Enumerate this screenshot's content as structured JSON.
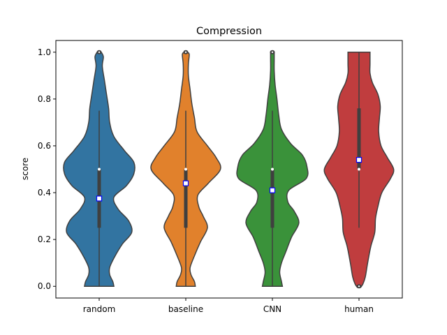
{
  "chart_data": {
    "type": "violin",
    "title": "Compression",
    "xlabel": "",
    "ylabel": "score",
    "ylim": [
      -0.05,
      1.05
    ],
    "yticks": [
      0.0,
      0.2,
      0.4,
      0.6,
      0.8,
      1.0
    ],
    "ytick_labels": [
      "0.0",
      "0.2",
      "0.4",
      "0.6",
      "0.8",
      "1.0"
    ],
    "categories": [
      "random",
      "baseline",
      "CNN",
      "human"
    ],
    "grid": false,
    "legend": "none",
    "series": [
      {
        "category": "random",
        "color": "#3274a1",
        "median": 0.5,
        "mean": 0.375,
        "q1": 0.25,
        "q3": 0.5,
        "whisker_low": 0.0,
        "whisker_high": 0.75,
        "outliers": [
          1.0
        ],
        "density": [
          [
            0.0,
            0.14
          ],
          [
            0.02,
            0.13
          ],
          [
            0.05,
            0.1
          ],
          [
            0.08,
            0.1
          ],
          [
            0.12,
            0.14
          ],
          [
            0.18,
            0.22
          ],
          [
            0.23,
            0.31
          ],
          [
            0.28,
            0.28
          ],
          [
            0.33,
            0.18
          ],
          [
            0.38,
            0.14
          ],
          [
            0.43,
            0.26
          ],
          [
            0.48,
            0.33
          ],
          [
            0.53,
            0.33
          ],
          [
            0.58,
            0.24
          ],
          [
            0.64,
            0.14
          ],
          [
            0.7,
            0.1
          ],
          [
            0.76,
            0.09
          ],
          [
            0.82,
            0.07
          ],
          [
            0.88,
            0.05
          ],
          [
            0.94,
            0.03
          ],
          [
            0.98,
            0.04
          ],
          [
            1.0,
            0.02
          ]
        ]
      },
      {
        "category": "baseline",
        "color": "#e1812c",
        "median": 0.5,
        "mean": 0.44,
        "q1": 0.25,
        "q3": 0.5,
        "whisker_low": 0.0,
        "whisker_high": 0.75,
        "outliers": [
          1.0
        ],
        "density": [
          [
            0.0,
            0.11
          ],
          [
            0.02,
            0.1
          ],
          [
            0.05,
            0.06
          ],
          [
            0.08,
            0.05
          ],
          [
            0.13,
            0.1
          ],
          [
            0.19,
            0.17
          ],
          [
            0.25,
            0.25
          ],
          [
            0.3,
            0.2
          ],
          [
            0.34,
            0.15
          ],
          [
            0.39,
            0.14
          ],
          [
            0.44,
            0.26
          ],
          [
            0.5,
            0.4
          ],
          [
            0.55,
            0.35
          ],
          [
            0.6,
            0.25
          ],
          [
            0.66,
            0.13
          ],
          [
            0.72,
            0.1
          ],
          [
            0.78,
            0.07
          ],
          [
            0.84,
            0.05
          ],
          [
            0.9,
            0.03
          ],
          [
            0.95,
            0.03
          ],
          [
            0.99,
            0.04
          ],
          [
            1.0,
            0.02
          ]
        ]
      },
      {
        "category": "CNN",
        "color": "#3a923a",
        "median": 0.5,
        "mean": 0.41,
        "q1": 0.25,
        "q3": 0.5,
        "whisker_low": 0.0,
        "whisker_high": 0.75,
        "outliers": [
          1.0
        ],
        "density": [
          [
            0.0,
            0.11
          ],
          [
            0.02,
            0.1
          ],
          [
            0.06,
            0.08
          ],
          [
            0.1,
            0.1
          ],
          [
            0.15,
            0.15
          ],
          [
            0.21,
            0.21
          ],
          [
            0.27,
            0.29
          ],
          [
            0.32,
            0.24
          ],
          [
            0.36,
            0.17
          ],
          [
            0.41,
            0.18
          ],
          [
            0.46,
            0.37
          ],
          [
            0.51,
            0.38
          ],
          [
            0.56,
            0.33
          ],
          [
            0.61,
            0.2
          ],
          [
            0.67,
            0.1
          ],
          [
            0.73,
            0.07
          ],
          [
            0.8,
            0.05
          ],
          [
            0.86,
            0.03
          ],
          [
            0.92,
            0.02
          ],
          [
            0.97,
            0.02
          ],
          [
            1.0,
            0.02
          ]
        ]
      },
      {
        "category": "human",
        "color": "#c03d3e",
        "median": 0.5,
        "mean": 0.54,
        "q1": 0.5,
        "q3": 0.76,
        "whisker_low": 0.25,
        "whisker_high": 1.0,
        "outliers": [
          0.0
        ],
        "density": [
          [
            -0.005,
            0.02
          ],
          [
            0.01,
            0.05
          ],
          [
            0.04,
            0.08
          ],
          [
            0.1,
            0.11
          ],
          [
            0.17,
            0.15
          ],
          [
            0.23,
            0.2
          ],
          [
            0.29,
            0.21
          ],
          [
            0.34,
            0.24
          ],
          [
            0.4,
            0.29
          ],
          [
            0.46,
            0.4
          ],
          [
            0.5,
            0.44
          ],
          [
            0.55,
            0.36
          ],
          [
            0.6,
            0.28
          ],
          [
            0.66,
            0.25
          ],
          [
            0.72,
            0.26
          ],
          [
            0.77,
            0.27
          ],
          [
            0.82,
            0.24
          ],
          [
            0.87,
            0.17
          ],
          [
            0.91,
            0.14
          ],
          [
            0.95,
            0.14
          ],
          [
            1.0,
            0.14
          ]
        ]
      }
    ]
  }
}
